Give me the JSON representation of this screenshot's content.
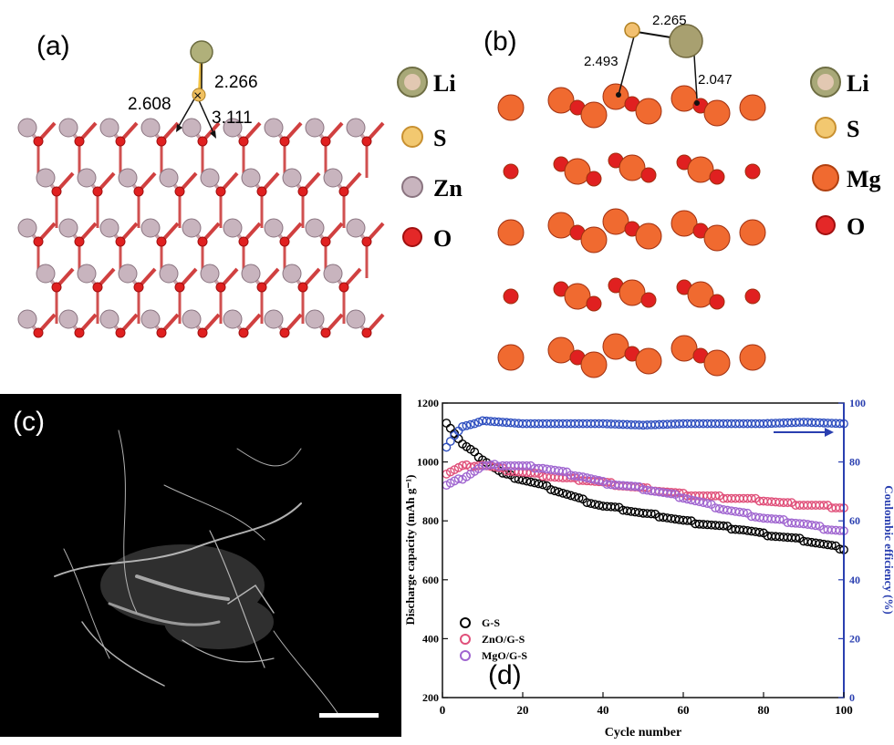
{
  "panel_a": {
    "label": "(a)",
    "distances": [
      "2.266",
      "2.608",
      "3.111"
    ],
    "legend": [
      {
        "symbol": "Li",
        "color": "#a0a070"
      },
      {
        "symbol": "S",
        "color": "#e8b050"
      },
      {
        "symbol": "Zn",
        "color": "#c8b4be"
      },
      {
        "symbol": "O",
        "color": "#e02020"
      }
    ]
  },
  "panel_b": {
    "label": "(b)",
    "distances": [
      "2.265",
      "2.493",
      "2.047"
    ],
    "legend": [
      {
        "symbol": "Li",
        "color": "#a0a070"
      },
      {
        "symbol": "S",
        "color": "#e8b050"
      },
      {
        "symbol": "Mg",
        "color": "#f06a30"
      },
      {
        "symbol": "O",
        "color": "#e02020"
      }
    ]
  },
  "panel_c": {
    "label": "(c)"
  },
  "chart_data": {
    "type": "scatter",
    "panel_label": "(d)",
    "xlabel": "Cycle number",
    "ylabel": "Discharge capacity (mAh g⁻¹)",
    "y2label": "Coulombic efficiency (%)",
    "xlim": [
      0,
      100
    ],
    "ylim": [
      200,
      1200
    ],
    "y2lim": [
      0,
      100
    ],
    "xticks": [
      "0",
      "20",
      "40",
      "60",
      "80",
      "100"
    ],
    "yticks": [
      "200",
      "400",
      "600",
      "800",
      "1000",
      "1200"
    ],
    "y2ticks": [
      "0",
      "20",
      "40",
      "60",
      "80",
      "100"
    ],
    "legend_position": "lower-left",
    "series": [
      {
        "name": "G-S",
        "color": "#000000",
        "axis": "left",
        "points": [
          [
            1,
            1135
          ],
          [
            5,
            1060
          ],
          [
            10,
            1010
          ],
          [
            15,
            960
          ],
          [
            20,
            940
          ],
          [
            25,
            920
          ],
          [
            30,
            895
          ],
          [
            35,
            870
          ],
          [
            40,
            850
          ],
          [
            45,
            840
          ],
          [
            50,
            825
          ],
          [
            55,
            815
          ],
          [
            60,
            800
          ],
          [
            65,
            790
          ],
          [
            70,
            780
          ],
          [
            75,
            770
          ],
          [
            80,
            755
          ],
          [
            85,
            745
          ],
          [
            90,
            735
          ],
          [
            95,
            720
          ],
          [
            100,
            705
          ]
        ]
      },
      {
        "name": "ZnO/G-S",
        "color": "#e0507a",
        "axis": "left",
        "points": [
          [
            1,
            960
          ],
          [
            5,
            985
          ],
          [
            10,
            990
          ],
          [
            15,
            975
          ],
          [
            20,
            965
          ],
          [
            25,
            955
          ],
          [
            30,
            945
          ],
          [
            35,
            940
          ],
          [
            40,
            930
          ],
          [
            45,
            920
          ],
          [
            50,
            910
          ],
          [
            55,
            900
          ],
          [
            60,
            890
          ],
          [
            65,
            885
          ],
          [
            70,
            880
          ],
          [
            75,
            875
          ],
          [
            80,
            870
          ],
          [
            85,
            860
          ],
          [
            90,
            855
          ],
          [
            95,
            850
          ],
          [
            100,
            845
          ]
        ]
      },
      {
        "name": "MgO/G-S",
        "color": "#a066d0",
        "axis": "left",
        "points": [
          [
            1,
            920
          ],
          [
            5,
            945
          ],
          [
            10,
            985
          ],
          [
            15,
            990
          ],
          [
            20,
            985
          ],
          [
            25,
            980
          ],
          [
            30,
            965
          ],
          [
            35,
            950
          ],
          [
            40,
            930
          ],
          [
            45,
            920
          ],
          [
            50,
            910
          ],
          [
            55,
            895
          ],
          [
            60,
            880
          ],
          [
            65,
            860
          ],
          [
            70,
            840
          ],
          [
            75,
            825
          ],
          [
            80,
            810
          ],
          [
            85,
            800
          ],
          [
            90,
            790
          ],
          [
            95,
            775
          ],
          [
            100,
            765
          ]
        ]
      },
      {
        "name": "Coulombic efficiency",
        "color": "#3050c0",
        "axis": "right",
        "points": [
          [
            1,
            85
          ],
          [
            3,
            89
          ],
          [
            5,
            92
          ],
          [
            8,
            93
          ],
          [
            10,
            94
          ],
          [
            15,
            93.5
          ],
          [
            20,
            93
          ],
          [
            30,
            93
          ],
          [
            40,
            93
          ],
          [
            50,
            92.5
          ],
          [
            60,
            93
          ],
          [
            70,
            93
          ],
          [
            80,
            93
          ],
          [
            90,
            93.5
          ],
          [
            100,
            93
          ]
        ]
      }
    ]
  }
}
